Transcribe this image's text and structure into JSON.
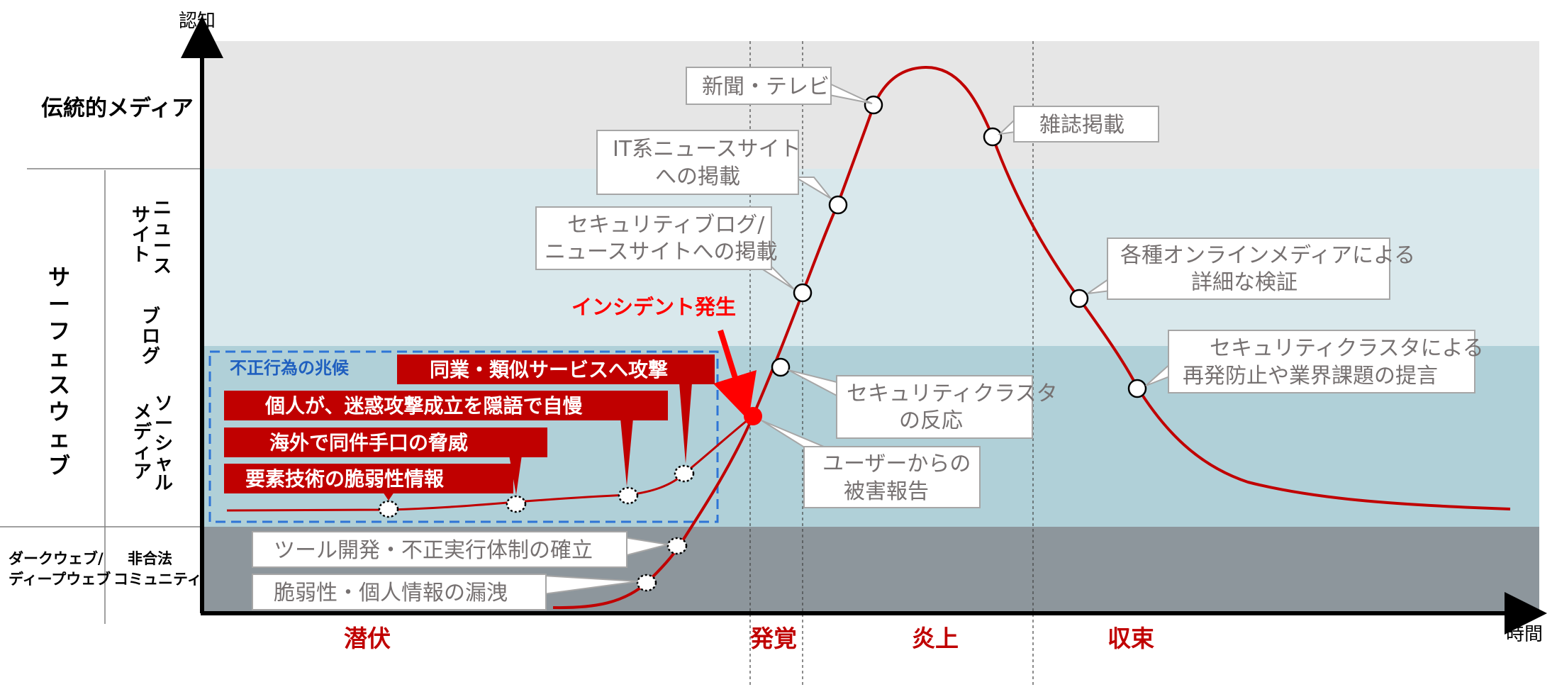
{
  "axis": {
    "y_label": "認知",
    "x_label": "時間"
  },
  "rows": {
    "traditional": "伝統的メディア",
    "surface": "サーフェスウェブ",
    "news_sites": "ニュースサイト",
    "blog": "ブログ",
    "social_media": "ソーシャルメディア",
    "dark_web": "ダークウェブ/ディープウェブ",
    "illegal_community": "非合法コミュニティ"
  },
  "phases": [
    "潜伏",
    "発覚",
    "炎上",
    "収束"
  ],
  "incident_label": "インシデント発生",
  "sign_box_label": "不正行為の兆候",
  "red_labels": [
    "同業・類似サービスへ攻撃",
    "個人が、迷惑攻撃成立を隠語で自慢",
    "海外で同件手口の脅威",
    "要素技術の脆弱性情報"
  ],
  "callouts": {
    "newspaper_tv": "新聞・テレビ",
    "magazine": "雑誌掲載",
    "it_news_1": "IT系ニュースサイト",
    "it_news_2": "への掲載",
    "sec_blog_1": "セキュリティブログ/",
    "sec_blog_2": "ニュースサイトへの掲載",
    "online_media_1": "各種オンラインメディアによる",
    "online_media_2": "詳細な検証",
    "sec_cluster_proposal_1": "セキュリティクラスタによる",
    "sec_cluster_proposal_2": "再発防止や業界課題の提言",
    "sec_cluster_reaction_1": "セキュリティクラスタ",
    "sec_cluster_reaction_2": "の反応",
    "user_damage_1": "ユーザーからの",
    "user_damage_2": "被害報告",
    "tool_dev": "ツール開発・不正実行体制の確立",
    "vuln_leak": "脆弱性・個人情報の漏洩"
  },
  "colors": {
    "curve": "#c00000",
    "band_traditional": "#e6e6e6",
    "band_news_blog": "#d9e8ec",
    "band_social": "#b0d0d8",
    "band_dark": "#8d969c",
    "callout_border": "#a6a6a6",
    "sign_border": "#2e75d6"
  }
}
